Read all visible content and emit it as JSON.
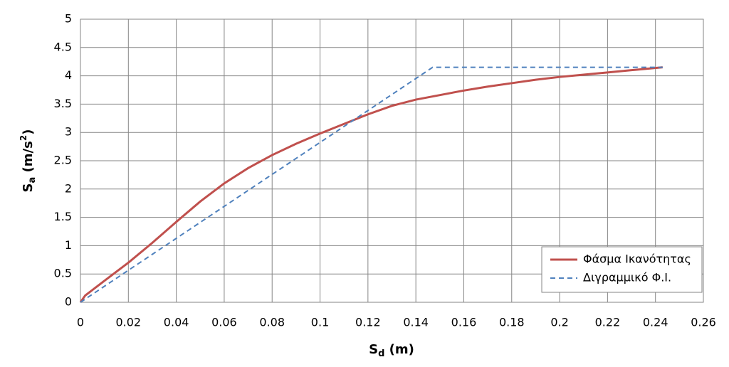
{
  "chart_data": {
    "type": "line",
    "xlabel": [
      "S",
      "d",
      " (m)"
    ],
    "ylabel": [
      "S",
      "a",
      " (m/s",
      "2",
      ")"
    ],
    "xlim": [
      0,
      0.26
    ],
    "xticks": [
      0,
      0.02,
      0.04,
      0.06,
      0.08,
      0.1,
      0.12,
      0.14,
      0.16,
      0.18,
      0.2,
      0.22,
      0.24,
      0.26
    ],
    "ylim": [
      0,
      5
    ],
    "yticks": [
      0,
      0.5,
      1,
      1.5,
      2,
      2.5,
      3,
      3.5,
      4,
      4.5,
      5
    ],
    "grid": true,
    "legend": "lower right",
    "series": [
      {
        "name": "Φάσμα Ικανότητας",
        "color": "#c0504d",
        "dash": false,
        "x": [
          0,
          0.002,
          0.01,
          0.02,
          0.03,
          0.04,
          0.05,
          0.06,
          0.07,
          0.08,
          0.09,
          0.1,
          0.11,
          0.12,
          0.13,
          0.14,
          0.15,
          0.16,
          0.17,
          0.18,
          0.19,
          0.2,
          0.21,
          0.22,
          0.23,
          0.243
        ],
        "values": [
          0,
          0.12,
          0.38,
          0.7,
          1.05,
          1.42,
          1.78,
          2.1,
          2.37,
          2.6,
          2.8,
          2.98,
          3.15,
          3.32,
          3.47,
          3.58,
          3.66,
          3.74,
          3.81,
          3.87,
          3.93,
          3.98,
          4.02,
          4.06,
          4.1,
          4.15
        ]
      },
      {
        "name": "Διγραμμικό Φ.Ι.",
        "color": "#4f81bd",
        "dash": true,
        "x": [
          0,
          0.147,
          0.243
        ],
        "values": [
          0,
          4.15,
          4.15
        ]
      }
    ]
  }
}
